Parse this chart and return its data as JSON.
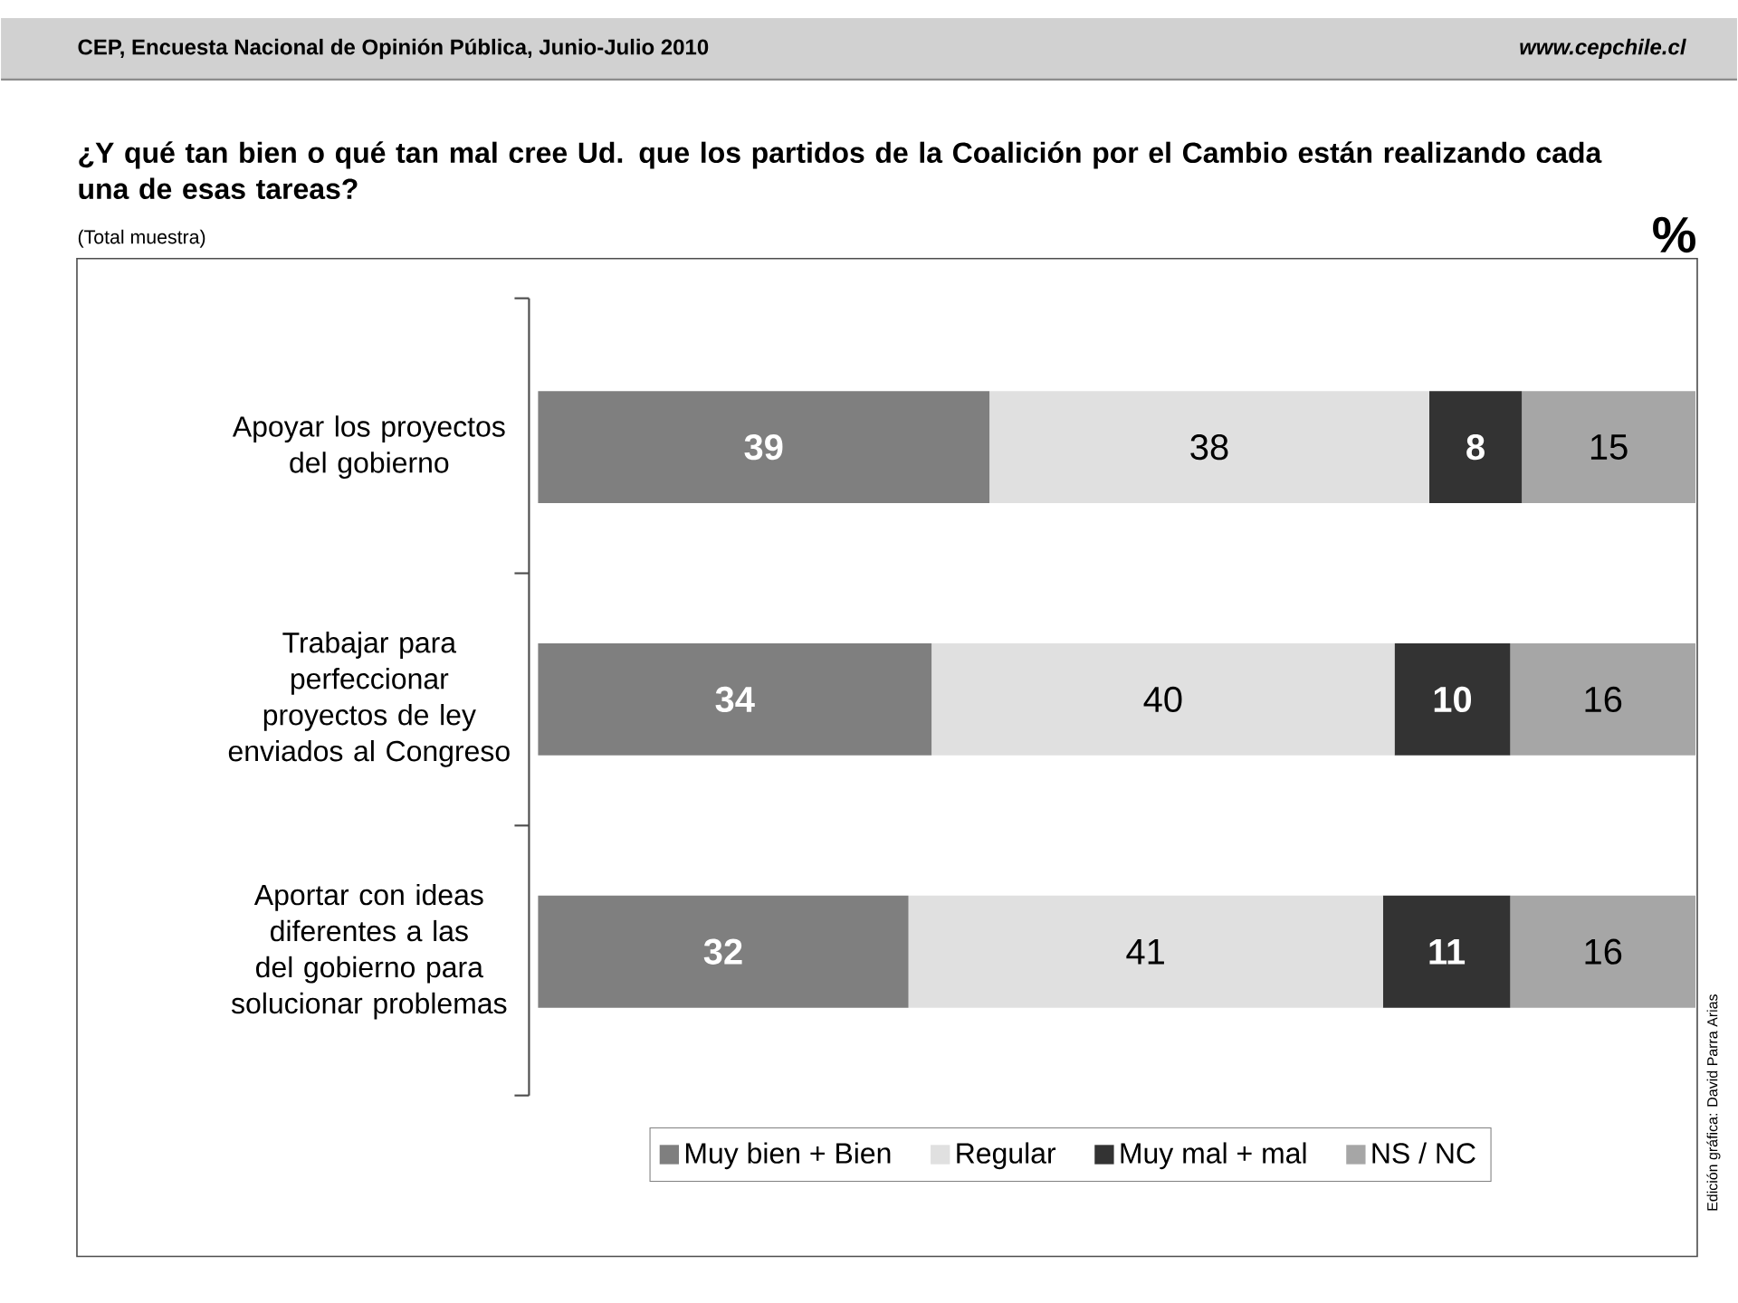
{
  "chart_data": {
    "type": "bar",
    "orientation": "horizontal",
    "stacked": true,
    "title": "¿Y qué tan bien o qué tan mal cree Ud. que los partidos de la Coalición por el Cambio están realizando cada una de esas tareas?",
    "subtitle": "(Total muestra)",
    "xlabel": "%",
    "categories": [
      "Apoyar los proyectos del gobierno",
      "Trabajar para perfeccionar proyectos de ley enviados al Congreso",
      "Aportar con ideas diferentes a las del gobierno para solucionar problemas"
    ],
    "series": [
      {
        "name": "Muy bien + Bien",
        "color": "#7f7f7f",
        "values": [
          39,
          34,
          32
        ]
      },
      {
        "name": "Regular",
        "color": "#e0e0e0",
        "values": [
          38,
          40,
          41
        ]
      },
      {
        "name": "Muy mal + mal",
        "color": "#333333",
        "values": [
          8,
          10,
          11
        ]
      },
      {
        "name": "NS / NC",
        "color": "#a6a6a6",
        "values": [
          15,
          16,
          16
        ]
      }
    ],
    "tick_labels": "y",
    "data_labels": true,
    "legend": "bottom",
    "annotations": [
      "CEP, Encuesta Nacional de Opinión Pública, Junio-Julio 2010",
      "www.cepchile.cl",
      "Edición gráfica: David Parra Arias"
    ]
  }
}
